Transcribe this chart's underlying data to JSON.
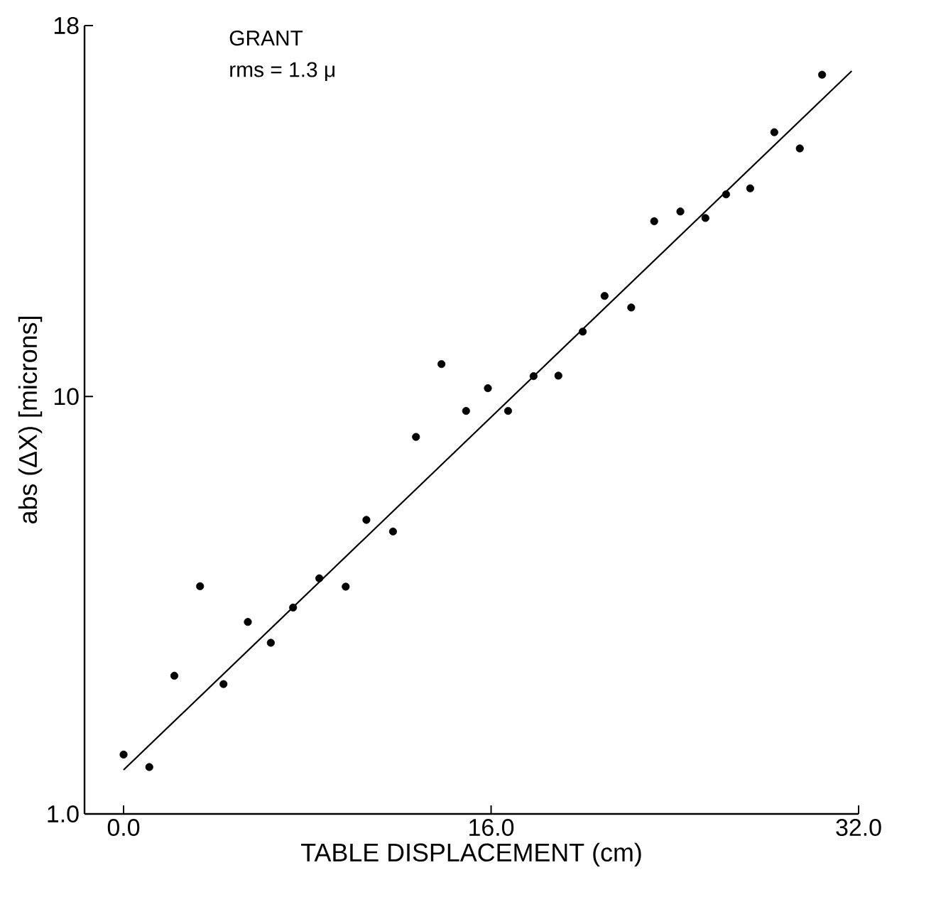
{
  "chart_data": {
    "type": "scatter",
    "xlabel": "TABLE DISPLACEMENT (cm)",
    "ylabel": "abs (ΔX) [microns]",
    "annotations": [
      "GRANT",
      "rms = 1.3 μ"
    ],
    "xlim": [
      -1.7,
      32
    ],
    "ylim": [
      1,
      18
    ],
    "xticks": [
      {
        "value": 0,
        "label": "0.0"
      },
      {
        "value": 16,
        "label": "16.0"
      },
      {
        "value": 32,
        "label": "32.0"
      }
    ],
    "yticks": [
      {
        "value": 1,
        "label": "1.0"
      },
      10,
      18
    ],
    "marker": "circle",
    "series": [
      {
        "color": "#000000",
        "x": [
          0.0,
          1.12,
          2.21,
          3.33,
          4.35,
          5.41,
          6.41,
          7.38,
          8.52,
          9.67,
          10.57,
          11.73,
          12.73,
          13.84,
          14.91,
          15.86,
          16.74,
          17.85,
          18.93,
          19.99,
          20.94,
          22.1,
          23.1,
          24.24,
          25.33,
          26.23,
          27.28,
          28.33,
          29.44,
          30.41
        ],
        "values": [
          2.28,
          2.01,
          3.98,
          5.91,
          3.8,
          5.14,
          4.69,
          5.45,
          6.08,
          5.9,
          7.34,
          7.09,
          9.13,
          10.7,
          9.69,
          10.18,
          9.69,
          10.44,
          10.45,
          11.4,
          12.17,
          11.92,
          13.78,
          13.99,
          13.85,
          14.36,
          14.49,
          15.7,
          15.35,
          16.94
        ]
      },
      {
        "type": "line",
        "marker": "none",
        "color": "#000000",
        "line_style": "solid",
        "x": [
          0,
          31.7
        ],
        "values": [
          1.95,
          17.02
        ]
      }
    ]
  }
}
